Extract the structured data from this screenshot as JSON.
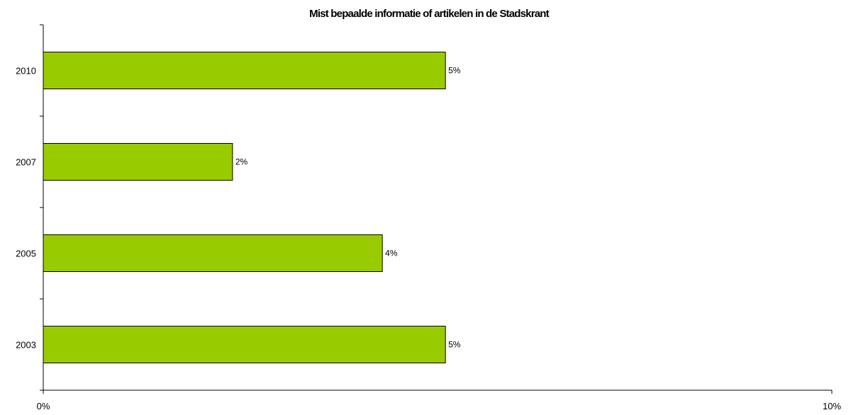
{
  "chart_data": {
    "type": "bar",
    "orientation": "horizontal",
    "title": "Mist bepaalde informatie of artikelen in de Stadskrant",
    "xlabel": "",
    "ylabel": "",
    "categories": [
      "2003",
      "2005",
      "2007",
      "2010"
    ],
    "values": [
      0.051,
      0.043,
      0.024,
      0.051
    ],
    "data_labels": [
      "5%",
      "4%",
      "2%",
      "5%"
    ],
    "xlim": [
      0,
      0.1
    ],
    "x_ticks": [
      "0%",
      "10%"
    ],
    "grid": false,
    "legend": "none",
    "bar_color": "#99cc00",
    "bar_edge_color": "#000000"
  }
}
